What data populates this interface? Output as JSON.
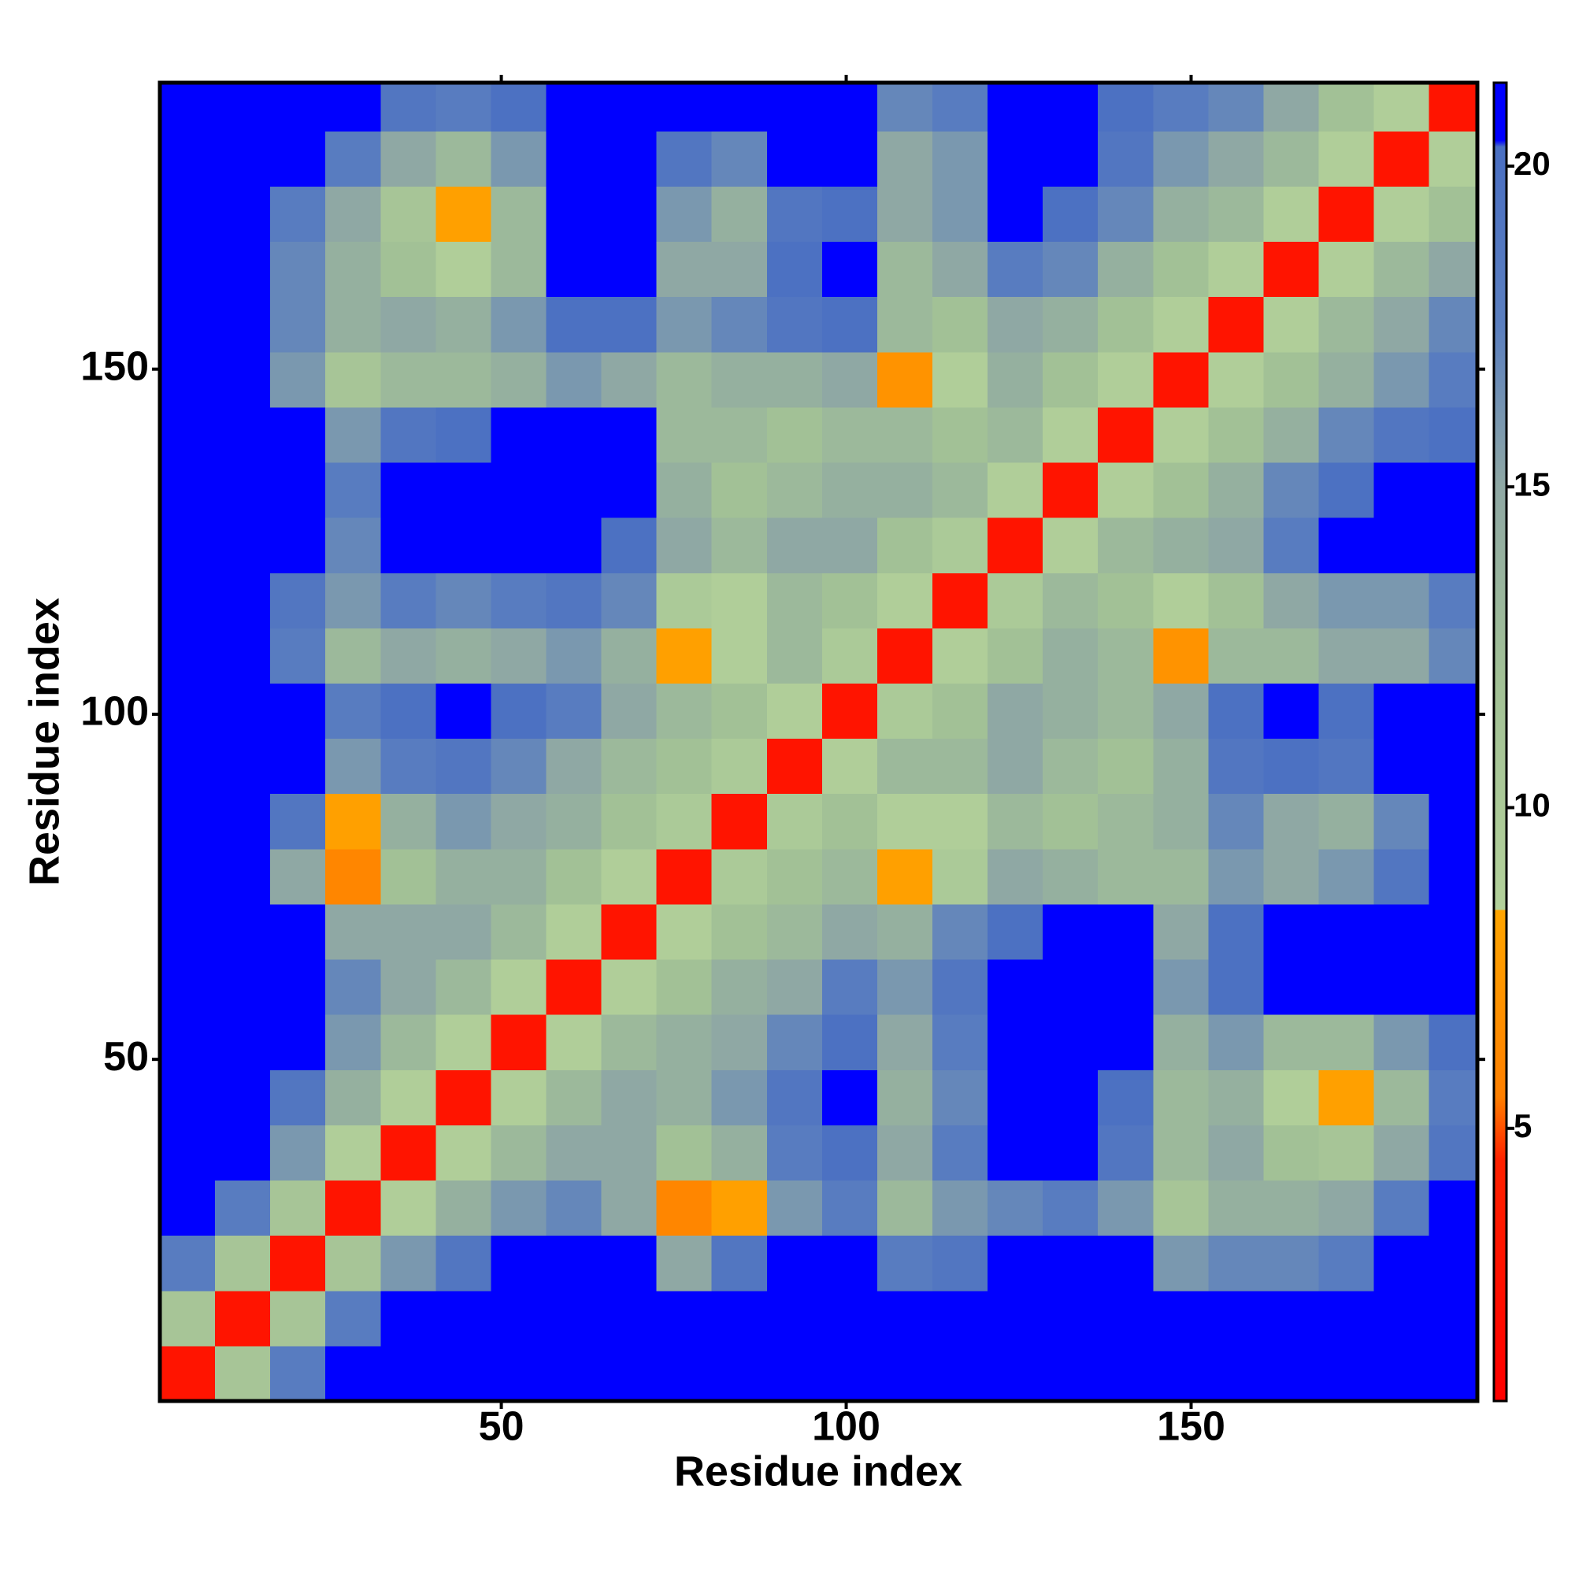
{
  "chart_data": {
    "type": "heatmap",
    "x_label": "Residue index",
    "y_label": "Residue index",
    "xlim": [
      0.5,
      191.5
    ],
    "ylim": [
      0.5,
      191.5
    ],
    "xticks": [
      50,
      100,
      150
    ],
    "yticks": [
      50,
      100,
      150
    ],
    "x_bins": [
      0.5,
      8.5,
      16.5,
      24.5,
      32.5,
      40.5,
      48.5,
      56.5,
      64.5,
      72.5,
      80.5,
      88.5,
      96.5,
      104.5,
      112.5,
      120.5,
      128.5,
      136.5,
      144.5,
      152.5,
      160.5,
      168.5,
      176.5,
      184.5,
      191.5
    ],
    "y_bins": [
      0.5,
      8.5,
      16.5,
      24.5,
      32.5,
      40.5,
      48.5,
      56.5,
      64.5,
      72.5,
      80.5,
      88.5,
      96.5,
      104.5,
      112.5,
      120.5,
      128.5,
      136.5,
      144.5,
      152.5,
      160.5,
      168.5,
      176.5,
      184.5,
      191.5
    ],
    "values": [
      [
        3,
        11,
        18,
        21,
        21,
        21,
        21,
        21,
        21,
        21,
        21,
        21,
        21,
        21,
        21,
        21,
        21,
        21,
        21,
        21,
        21,
        21,
        21,
        21
      ],
      [
        11,
        3,
        11,
        18,
        21,
        21,
        21,
        21,
        21,
        21,
        21,
        21,
        21,
        21,
        21,
        21,
        21,
        21,
        21,
        21,
        21,
        21,
        21,
        21
      ],
      [
        18,
        11,
        3,
        11,
        16,
        19,
        21,
        21,
        21,
        15,
        19,
        21,
        21,
        18,
        19,
        21,
        21,
        21,
        16,
        17,
        17,
        18,
        21,
        21
      ],
      [
        21,
        18,
        11,
        3,
        9,
        14,
        16,
        17,
        15,
        6,
        8,
        16,
        18,
        13,
        16,
        17,
        18,
        16,
        11,
        14,
        14,
        15,
        18,
        21
      ],
      [
        21,
        21,
        16,
        9,
        3,
        9,
        13,
        15,
        15,
        12,
        14,
        18,
        20,
        15,
        18,
        21,
        21,
        19,
        13,
        15,
        12,
        11,
        15,
        19
      ],
      [
        21,
        21,
        19,
        14,
        9,
        3,
        9,
        13,
        15,
        14,
        16,
        19,
        21,
        14,
        17,
        21,
        21,
        20,
        13,
        14,
        9,
        8,
        13,
        18
      ],
      [
        21,
        21,
        21,
        16,
        13,
        9,
        3,
        9,
        13,
        14,
        15,
        17,
        20,
        15,
        18,
        21,
        21,
        21,
        14,
        16,
        13,
        13,
        16,
        20
      ],
      [
        21,
        21,
        21,
        17,
        15,
        13,
        9,
        3,
        9,
        12,
        14,
        15,
        18,
        16,
        19,
        21,
        21,
        21,
        16,
        20,
        21,
        21,
        21,
        21
      ],
      [
        21,
        21,
        21,
        15,
        15,
        15,
        13,
        9,
        3,
        9,
        12,
        13,
        15,
        14,
        17,
        20,
        21,
        21,
        15,
        20,
        21,
        21,
        21,
        21
      ],
      [
        21,
        21,
        15,
        6,
        12,
        14,
        14,
        12,
        9,
        3,
        10,
        12,
        13,
        8,
        10,
        15,
        14,
        13,
        13,
        16,
        15,
        16,
        19,
        21
      ],
      [
        21,
        21,
        19,
        8,
        14,
        16,
        15,
        14,
        12,
        10,
        3,
        10,
        12,
        9,
        9,
        13,
        12,
        13,
        14,
        17,
        15,
        14,
        17,
        21
      ],
      [
        21,
        21,
        21,
        16,
        18,
        19,
        17,
        15,
        13,
        12,
        10,
        3,
        9,
        13,
        13,
        15,
        13,
        12,
        14,
        19,
        20,
        19,
        21,
        21
      ],
      [
        21,
        21,
        21,
        18,
        20,
        21,
        20,
        18,
        15,
        13,
        12,
        9,
        3,
        10,
        12,
        15,
        14,
        13,
        15,
        20,
        21,
        20,
        21,
        21
      ],
      [
        21,
        21,
        18,
        13,
        15,
        14,
        15,
        16,
        14,
        8,
        9,
        13,
        10,
        3,
        9,
        12,
        14,
        13,
        7,
        13,
        13,
        15,
        15,
        17
      ],
      [
        21,
        21,
        19,
        16,
        18,
        17,
        18,
        19,
        17,
        10,
        9,
        13,
        12,
        9,
        3,
        10,
        13,
        12,
        9,
        12,
        15,
        16,
        16,
        18
      ],
      [
        21,
        21,
        21,
        17,
        21,
        21,
        21,
        21,
        20,
        15,
        13,
        15,
        15,
        12,
        10,
        3,
        9,
        13,
        14,
        15,
        18,
        21,
        21,
        21
      ],
      [
        21,
        21,
        21,
        18,
        21,
        21,
        21,
        21,
        21,
        14,
        12,
        13,
        14,
        14,
        13,
        9,
        3,
        9,
        12,
        14,
        17,
        20,
        21,
        21
      ],
      [
        21,
        21,
        21,
        16,
        19,
        20,
        21,
        21,
        21,
        13,
        13,
        12,
        13,
        13,
        12,
        13,
        9,
        3,
        9,
        12,
        14,
        17,
        19,
        20
      ],
      [
        21,
        21,
        16,
        11,
        13,
        13,
        14,
        16,
        15,
        13,
        14,
        14,
        15,
        7,
        9,
        14,
        12,
        9,
        3,
        9,
        12,
        14,
        16,
        18
      ],
      [
        21,
        21,
        17,
        14,
        15,
        14,
        16,
        20,
        20,
        16,
        17,
        19,
        20,
        13,
        12,
        15,
        14,
        12,
        9,
        3,
        9,
        13,
        15,
        17
      ],
      [
        21,
        21,
        17,
        14,
        12,
        9,
        13,
        21,
        21,
        15,
        15,
        20,
        21,
        13,
        15,
        18,
        17,
        14,
        12,
        9,
        3,
        9,
        13,
        15
      ],
      [
        21,
        21,
        18,
        15,
        11,
        8,
        13,
        21,
        21,
        16,
        14,
        19,
        20,
        15,
        16,
        21,
        20,
        17,
        14,
        13,
        9,
        3,
        9,
        12
      ],
      [
        21,
        21,
        21,
        18,
        15,
        13,
        16,
        21,
        21,
        19,
        17,
        21,
        21,
        15,
        16,
        21,
        21,
        19,
        16,
        15,
        13,
        9,
        3,
        9
      ],
      [
        21,
        21,
        21,
        21,
        19,
        18,
        20,
        21,
        21,
        21,
        21,
        21,
        21,
        17,
        18,
        21,
        21,
        20,
        18,
        17,
        15,
        12,
        9,
        3
      ]
    ],
    "colorbar": {
      "lim": [
        0.75,
        21.3
      ],
      "ticks": [
        5,
        10,
        15,
        20
      ]
    },
    "colorscale": [
      [
        0.75,
        "#ff0000"
      ],
      [
        4.5,
        "#ff2200"
      ],
      [
        5.5,
        "#ff8000"
      ],
      [
        8.4,
        "#ffa500"
      ],
      [
        8.41,
        "#b3d19a"
      ],
      [
        12,
        "#a2c196"
      ],
      [
        15,
        "#8fa8a4"
      ],
      [
        17.5,
        "#5b7fbf"
      ],
      [
        20.3,
        "#4a6fc2"
      ],
      [
        20.4,
        "#0000ff"
      ],
      [
        21.3,
        "#0000ff"
      ]
    ]
  }
}
